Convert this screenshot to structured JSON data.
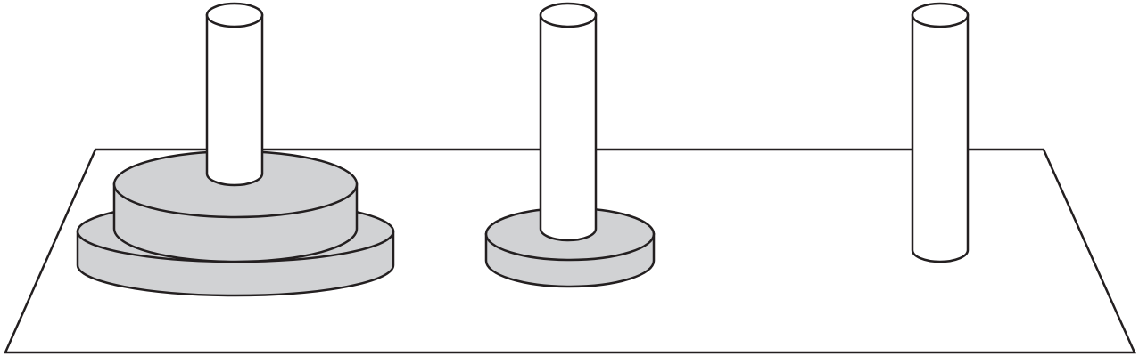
{
  "colors": {
    "background": "#ffffff",
    "stroke": "#231f20",
    "disk_fill": "#d1d2d4",
    "peg_fill": "#ffffff"
  },
  "puzzle": {
    "pegs": [
      {
        "id": "peg-1",
        "disk_count": 2
      },
      {
        "id": "peg-2",
        "disk_count": 1
      },
      {
        "id": "peg-3",
        "disk_count": 0
      }
    ],
    "disks": [
      {
        "id": "disk-large",
        "size_rank": 3,
        "peg": "peg-1"
      },
      {
        "id": "disk-medium",
        "size_rank": 2,
        "peg": "peg-1"
      },
      {
        "id": "disk-small",
        "size_rank": 1,
        "peg": "peg-2"
      }
    ]
  }
}
